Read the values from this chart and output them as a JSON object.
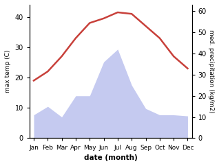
{
  "months": [
    "Jan",
    "Feb",
    "Mar",
    "Apr",
    "May",
    "Jun",
    "Jul",
    "Aug",
    "Sep",
    "Oct",
    "Nov",
    "Dec"
  ],
  "temperature": [
    19,
    22,
    27,
    33,
    38,
    39.5,
    41.5,
    41,
    37,
    33,
    27,
    23
  ],
  "precipitation": [
    11,
    15,
    10,
    20,
    20,
    36,
    42,
    25,
    14,
    11,
    11,
    10.5
  ],
  "temp_color": "#c8403a",
  "precip_fill_color": "#c5caf0",
  "temp_ylim": [
    0,
    44
  ],
  "precip_ylim": [
    0,
    63
  ],
  "temp_yticks": [
    0,
    10,
    20,
    30,
    40
  ],
  "precip_yticks": [
    0,
    10,
    20,
    30,
    40,
    50,
    60
  ],
  "xlabel": "date (month)",
  "ylabel_left": "max temp (C)",
  "ylabel_right": "med. precipitation (kg/m2)",
  "figsize": [
    3.18,
    2.42
  ],
  "dpi": 100
}
